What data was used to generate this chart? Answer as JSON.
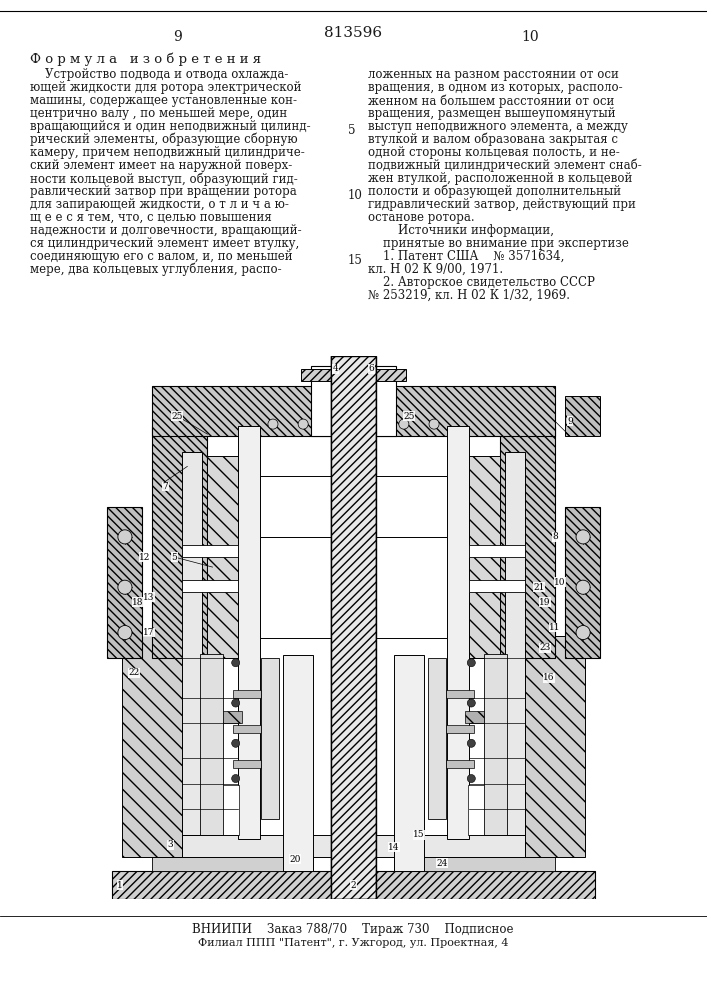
{
  "bg_color": "#ffffff",
  "text_color": "#1a1a1a",
  "page_num_left": "9",
  "page_num_center": "813596",
  "page_num_right": "10",
  "section_header": "Ф о р м у л а   и з о б р е т е н и я",
  "left_col_lines": [
    "    Устройство подвода и отвода охлажда-",
    "ющей жидкости для ротора электрической",
    "машины, содержащее установленные кон-",
    "центрично валу , по меньшей мере, один",
    "вращающийся и один неподвижный цилинд-",
    "рический элементы, образующие сборную",
    "камеру, причем неподвижный цилиндриче-",
    "ский элемент имеет на наружной поверх-",
    "ности кольцевой выступ, образующий гид-",
    "равлический затвор при вращении ротора",
    "для запирающей жидкости, о т л и ч а ю-",
    "щ е е с я тем, что, с целью повышения",
    "надежности и долговечности, вращающий-",
    "ся цилиндрический элемент имеет втулку,",
    "соединяющую его с валом, и, по меньшей",
    "мере, два кольцевых углубления, распо-"
  ],
  "right_col_lines": [
    "ложенных на разном расстоянии от оси",
    "вращения, в одном из которых, располо-",
    "женном на большем расстоянии от оси",
    "вращения, размещен вышеупомянутый",
    "выступ неподвижного элемента, а между",
    "втулкой и валом образована закрытая с",
    "одной стороны кольцевая полость, и не-",
    "подвижный цилиндрический элемент снаб-",
    "жен втулкой, расположенной в кольцевой",
    "полости и образующей дополнительный",
    "гидравлический затвор, действующий при",
    "останове ротора.",
    "        Источники информации,",
    "    принятые во внимание при экспертизе",
    "    1. Патент США    № 3571634,",
    "кл. Н 02 К 9/00, 1971.",
    "    2. Авторское свидетельство СССР",
    "№ 253219, кл. Н 02 К 1/32, 1969."
  ],
  "footer_top": "ВНИИПИ    Заказ 788/70    Тираж 730    Подписное",
  "footer_bottom": "Филиал ППП \"Патент\", г. Ужгород, ул. Проектная, 4"
}
